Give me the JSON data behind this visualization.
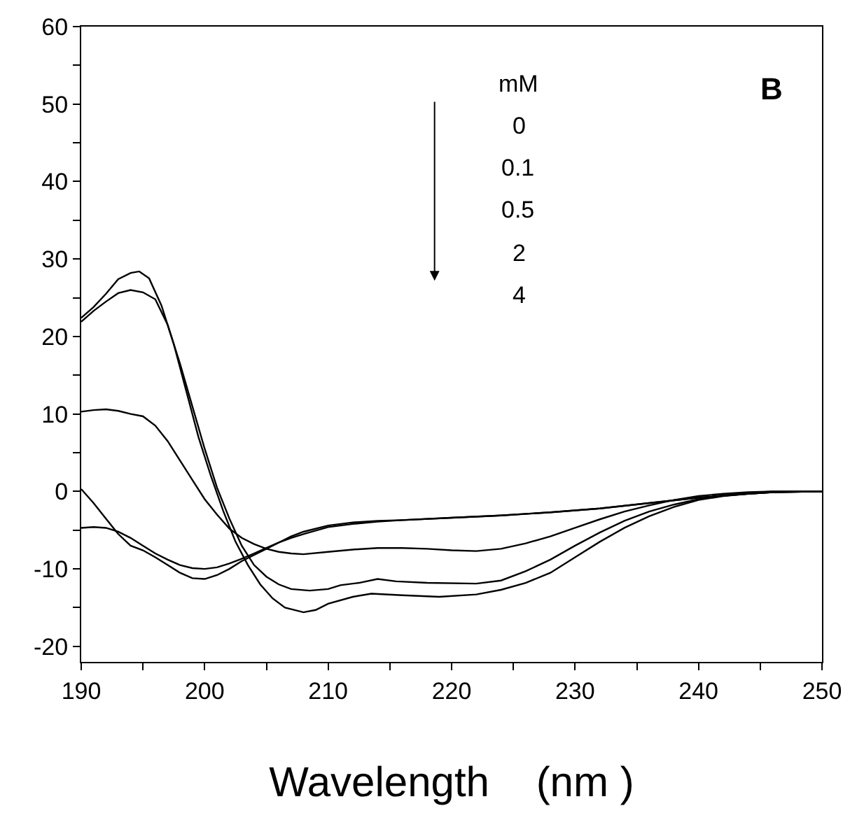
{
  "chart_data": {
    "type": "line",
    "xlabel": "Wavelength    (nm )",
    "annotations": [
      "B",
      "mM",
      "0",
      "0.1",
      "0.5",
      "2",
      "4"
    ],
    "xlim": [
      190,
      250
    ],
    "ylim": [
      -22,
      60
    ],
    "xticks": [
      190,
      {
        "value": 195,
        "label": null
      },
      200,
      {
        "value": 205,
        "label": null
      },
      210,
      {
        "value": 215,
        "label": null
      },
      220,
      {
        "value": 225,
        "label": null
      },
      230,
      {
        "value": 235,
        "label": null
      },
      240,
      {
        "value": 245,
        "label": null
      },
      250
    ],
    "yticks": [
      {
        "value": -15,
        "label": null
      },
      -20,
      -10,
      {
        "value": -5,
        "label": null
      },
      0,
      {
        "value": 5,
        "label": null
      },
      10,
      {
        "value": 15,
        "label": null
      },
      20,
      {
        "value": 25,
        "label": null
      },
      30,
      {
        "value": 35,
        "label": null
      },
      40,
      {
        "value": 45,
        "label": null
      },
      50,
      {
        "value": 55,
        "label": null
      },
      60
    ],
    "grid": false,
    "marker": "none",
    "line_style": "solid",
    "series": [
      {
        "color": "#000000",
        "x": [
          190,
          191,
          192,
          193,
          194,
          194.7,
          195.5,
          196.5,
          197.5,
          198.5,
          199.5,
          200.5,
          201.5,
          202.5,
          203.5,
          204.5,
          205.5,
          206.5,
          208,
          209,
          210,
          212,
          213.5,
          216,
          219,
          222,
          224,
          226,
          228,
          230,
          232,
          234,
          236,
          238,
          240,
          242,
          244,
          246,
          250
        ],
        "values": [
          22.4,
          23.8,
          25.5,
          27.4,
          28.2,
          28.4,
          27.5,
          24,
          19,
          13,
          7,
          2,
          -2.5,
          -6.5,
          -9.5,
          -12,
          -13.8,
          -15,
          -15.6,
          -15.3,
          -14.5,
          -13.6,
          -13.2,
          -13.4,
          -13.6,
          -13.3,
          -12.7,
          -11.8,
          -10.5,
          -8.5,
          -6.5,
          -4.7,
          -3.2,
          -2,
          -1.1,
          -0.6,
          -0.3,
          -0.1,
          0
        ]
      },
      {
        "color": "#000000",
        "x": [
          190,
          191,
          192,
          193,
          194,
          195,
          196,
          197,
          198,
          199,
          200,
          201,
          202,
          203,
          204,
          205,
          206,
          207,
          208.5,
          210,
          211,
          212.5,
          214,
          215.5,
          218,
          222,
          224,
          226,
          228,
          230,
          232,
          234,
          236,
          238,
          240,
          242,
          244,
          246,
          250
        ],
        "values": [
          21.9,
          23.3,
          24.5,
          25.6,
          26,
          25.7,
          24.8,
          21.5,
          16.5,
          11,
          5.5,
          0.5,
          -3.5,
          -7,
          -9.5,
          -11,
          -12,
          -12.6,
          -12.8,
          -12.6,
          -12.1,
          -11.8,
          -11.3,
          -11.6,
          -11.8,
          -11.9,
          -11.5,
          -10.3,
          -8.8,
          -7,
          -5.3,
          -3.8,
          -2.6,
          -1.7,
          -1,
          -0.5,
          -0.2,
          0,
          0
        ]
      },
      {
        "color": "#000000",
        "x": [
          190,
          191,
          192,
          193,
          194,
          195,
          196,
          197,
          198,
          199,
          200,
          201,
          202,
          203,
          204,
          205,
          206,
          207,
          208,
          210,
          212,
          214,
          216,
          218,
          220,
          222,
          224,
          226,
          228,
          230,
          232,
          234,
          236,
          238,
          240,
          242,
          244,
          246,
          250
        ],
        "values": [
          10.3,
          10.5,
          10.6,
          10.4,
          10,
          9.7,
          8.5,
          6.5,
          4,
          1.5,
          -1,
          -3,
          -4.8,
          -6,
          -6.8,
          -7.4,
          -7.8,
          -8,
          -8.1,
          -7.8,
          -7.5,
          -7.3,
          -7.3,
          -7.4,
          -7.6,
          -7.7,
          -7.4,
          -6.7,
          -5.8,
          -4.7,
          -3.6,
          -2.6,
          -1.8,
          -1.1,
          -0.6,
          -0.3,
          -0.1,
          0,
          0
        ]
      },
      {
        "color": "#000000",
        "x": [
          190,
          191,
          192,
          193,
          194,
          195,
          196,
          197,
          198,
          199,
          200,
          201,
          202,
          203,
          204,
          205,
          206,
          207,
          208,
          210,
          212,
          214,
          216,
          220,
          224,
          228,
          232,
          236,
          240,
          244,
          246,
          250
        ],
        "values": [
          0.3,
          -1.5,
          -3.5,
          -5.5,
          -7,
          -7.6,
          -8.5,
          -9.5,
          -10.5,
          -11.2,
          -11.3,
          -10.8,
          -10,
          -9,
          -8.2,
          -7.4,
          -6.6,
          -5.8,
          -5.2,
          -4.4,
          -4,
          -3.8,
          -3.7,
          -3.4,
          -3.1,
          -2.7,
          -2.2,
          -1.5,
          -0.8,
          -0.3,
          -0.1,
          0
        ]
      },
      {
        "color": "#000000",
        "x": [
          190,
          191,
          192,
          193,
          194,
          195,
          196,
          197,
          198,
          199,
          200,
          201,
          202,
          203,
          204,
          205,
          206,
          207,
          208,
          210,
          212,
          214,
          216,
          220,
          224,
          228,
          232,
          236,
          240,
          244,
          246,
          250
        ],
        "values": [
          -4.7,
          -4.6,
          -4.7,
          -5.2,
          -6,
          -7,
          -8,
          -8.8,
          -9.5,
          -9.9,
          -10,
          -9.8,
          -9.3,
          -8.7,
          -8,
          -7.3,
          -6.6,
          -6,
          -5.5,
          -4.6,
          -4.2,
          -3.9,
          -3.7,
          -3.4,
          -3.1,
          -2.7,
          -2.2,
          -1.5,
          -0.8,
          -0.3,
          -0.1,
          0
        ]
      }
    ]
  }
}
